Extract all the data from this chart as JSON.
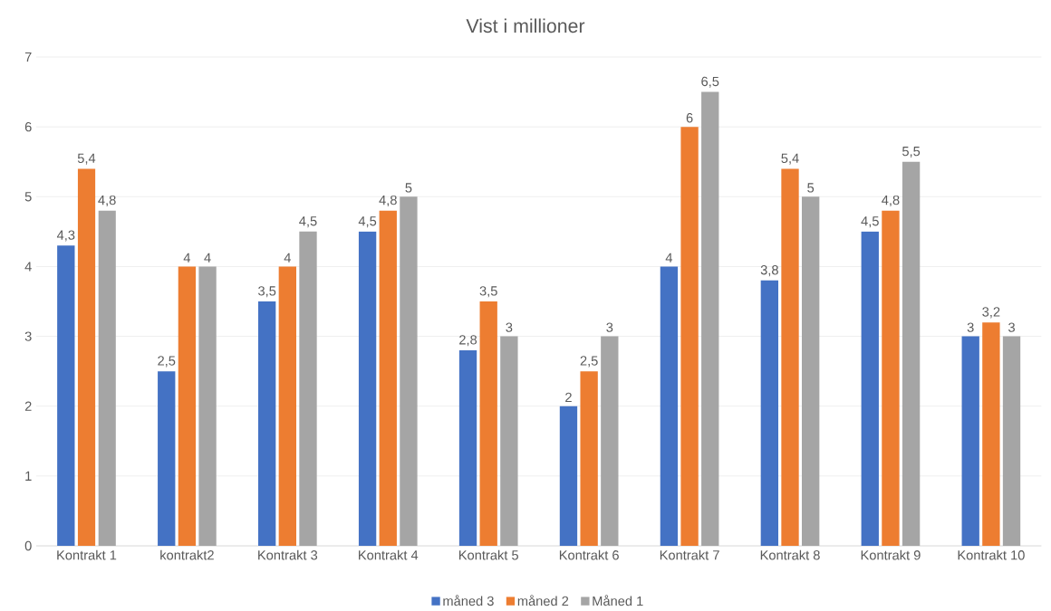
{
  "chart_data": {
    "type": "bar",
    "title": "Vist i millioner",
    "categories": [
      "Kontrakt 1",
      "kontrakt2",
      "Kontrakt 3",
      "Kontrakt 4",
      "Kontrakt 5",
      "Kontrakt 6",
      "Kontrakt 7",
      "Kontrakt 8",
      "Kontrakt 9",
      "Kontrakt 10"
    ],
    "series": [
      {
        "name": "måned 3",
        "color": "#4472c4",
        "values": [
          4.3,
          2.5,
          3.5,
          4.5,
          2.8,
          2,
          4,
          3.8,
          4.5,
          3
        ],
        "value_labels": [
          "4,3",
          "2,5",
          "3,5",
          "4,5",
          "2,8",
          "2",
          "4",
          "3,8",
          "4,5",
          "3"
        ]
      },
      {
        "name": "måned 2",
        "color": "#ed7d31",
        "values": [
          5.4,
          4,
          4,
          4.8,
          3.5,
          2.5,
          6,
          5.4,
          4.8,
          3.2
        ],
        "value_labels": [
          "5,4",
          "4",
          "4",
          "4,8",
          "3,5",
          "2,5",
          "6",
          "5,4",
          "4,8",
          "3,2"
        ]
      },
      {
        "name": "Måned 1",
        "color": "#a5a5a5",
        "values": [
          4.8,
          4,
          4.5,
          5,
          3,
          3,
          6.5,
          5,
          5.5,
          3
        ],
        "value_labels": [
          "4,8",
          "4",
          "4,5",
          "5",
          "3",
          "3",
          "6,5",
          "5",
          "5,5",
          "3"
        ]
      }
    ],
    "ylim": [
      0,
      7
    ],
    "yticks": [
      0,
      1,
      2,
      3,
      4,
      5,
      6,
      7
    ],
    "grid": "y",
    "legend": "bottom"
  }
}
